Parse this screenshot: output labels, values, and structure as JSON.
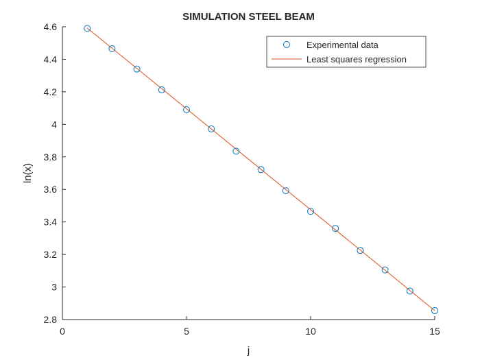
{
  "chart_data": {
    "type": "scatter",
    "title": "SIMULATION STEEL BEAM",
    "xlabel": "j",
    "ylabel": "ln(x)",
    "xlim": [
      0,
      15
    ],
    "ylim": [
      2.8,
      4.6
    ],
    "xticks": [
      0,
      5,
      10,
      15
    ],
    "yticks": [
      2.8,
      3,
      3.2,
      3.4,
      3.6,
      3.8,
      4,
      4.2,
      4.4,
      4.6
    ],
    "xtick_labels": [
      "0",
      "5",
      "10",
      "15"
    ],
    "ytick_labels": [
      "2.8",
      "3",
      "3.2",
      "3.4",
      "3.6",
      "3.8",
      "4",
      "4.2",
      "4.4",
      "4.6"
    ],
    "grid": false,
    "legend_position": "top-right",
    "series": [
      {
        "name": "Experimental data",
        "kind": "markers",
        "marker": "circle-open",
        "color": "#0072BD",
        "x": [
          1,
          2,
          3,
          4,
          5,
          6,
          7,
          8,
          9,
          10,
          11,
          12,
          13,
          14,
          15
        ],
        "y": [
          4.59,
          4.465,
          4.34,
          4.212,
          4.09,
          3.972,
          3.835,
          3.722,
          3.592,
          3.465,
          3.36,
          3.225,
          3.105,
          2.975,
          2.855
        ]
      },
      {
        "name": "Least squares regression",
        "kind": "line",
        "color": "#D95319",
        "x": [
          1,
          15
        ],
        "y": [
          4.592,
          2.855
        ]
      }
    ]
  }
}
